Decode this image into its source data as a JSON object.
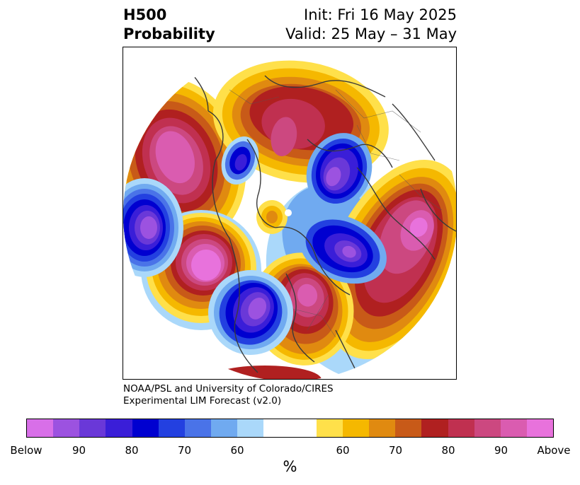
{
  "title": {
    "line1": "H500",
    "line2": "Probability"
  },
  "init": "Init: Fri 16 May 2025",
  "valid": "Valid: 25 May – 31 May",
  "credit": {
    "line1": "NOAA/PSL and University of Colorado/CIRES",
    "line2": "Experimental LIM Forecast (v2.0)"
  },
  "colorbar": {
    "unit": "%",
    "colors": [
      "#d86fe8",
      "#9c52e0",
      "#6a38d8",
      "#3a1ed8",
      "#0000d0",
      "#2340e0",
      "#4a73e8",
      "#70aaf0",
      "#aad8fa",
      "#ffffff",
      "#ffffff",
      "#ffe04a",
      "#f5b800",
      "#e08a10",
      "#c85a18",
      "#b02020",
      "#c03050",
      "#cc4880",
      "#da5cb0",
      "#e872dc"
    ],
    "ticks": [
      "Below",
      "90",
      "80",
      "70",
      "60",
      "60",
      "70",
      "80",
      "90",
      "Above"
    ]
  },
  "colors": {
    "coast": "#3a3a3a",
    "above_strong": "#e872dc",
    "below_strong": "#0000d0"
  }
}
